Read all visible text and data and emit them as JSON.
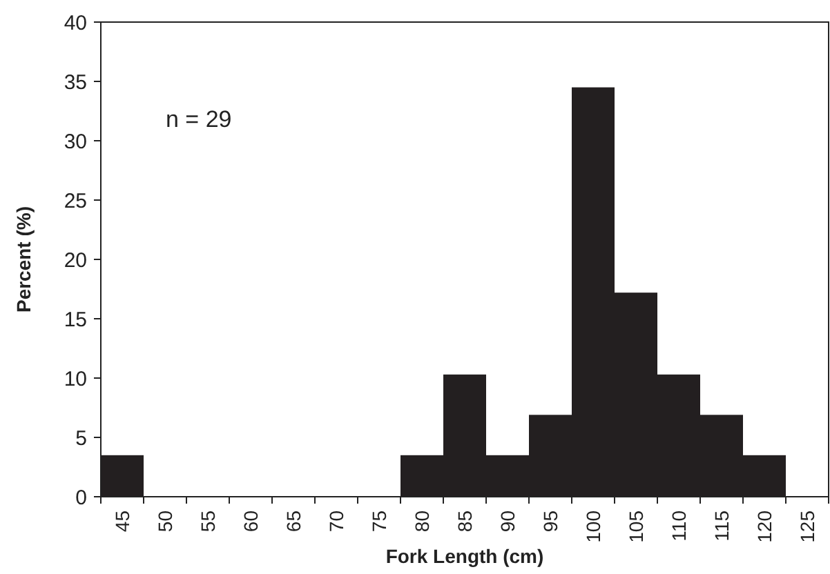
{
  "chart_data": {
    "type": "bar",
    "xlabel": "Fork Length (cm)",
    "ylabel": "Percent (%)",
    "categories": [
      "45",
      "50",
      "55",
      "60",
      "65",
      "70",
      "75",
      "80",
      "85",
      "90",
      "95",
      "100",
      "105",
      "110",
      "115",
      "120",
      "125"
    ],
    "values": [
      3.5,
      0,
      0,
      0,
      0,
      0,
      0,
      3.5,
      10.3,
      3.5,
      6.9,
      34.5,
      17.2,
      10.3,
      6.9,
      3.5,
      0
    ],
    "color": "#231f20",
    "ylim": [
      0,
      40
    ],
    "yticks": [
      0,
      5,
      10,
      15,
      20,
      25,
      30,
      35,
      40
    ],
    "grid": false,
    "annotations": [
      "n = 29"
    ]
  }
}
